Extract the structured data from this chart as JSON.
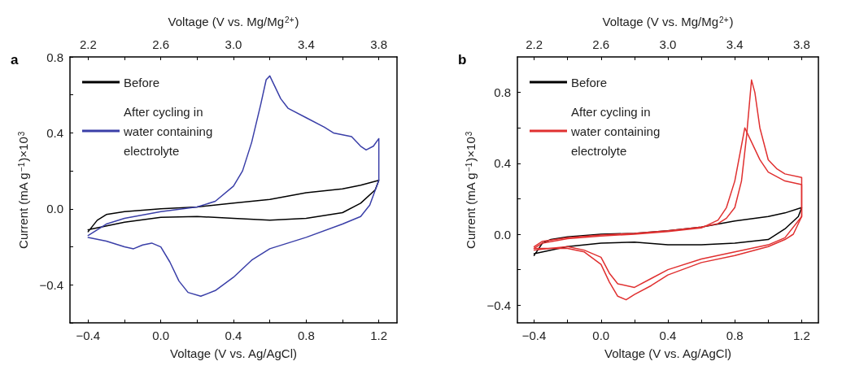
{
  "chart_data": [
    {
      "type": "line",
      "title": "a",
      "xlabel": "Voltage (V vs. Ag/AgCl)",
      "x2label": "Voltage (V vs. Mg/Mg$^{2+}$)",
      "ylabel": "Current (mA g$^{−1}$)×10$^{3}$",
      "legend": "top left",
      "marker": "none",
      "xlim": [
        -0.5,
        1.3
      ],
      "xticks": [
        {
          "value": -0.4,
          "label": "−0.4"
        },
        {
          "value": -0.2,
          "label": null
        },
        {
          "value": 0,
          "label": "0.0"
        },
        {
          "value": 0.2,
          "label": null
        },
        {
          "value": 0.4,
          "label": "0.4"
        },
        {
          "value": 0.6,
          "label": null
        },
        {
          "value": 0.8,
          "label": "0.8"
        },
        {
          "value": 1.0,
          "label": null
        },
        {
          "value": 1.2,
          "label": "1.2"
        }
      ],
      "x2lim": [
        2.1,
        3.9
      ],
      "x2ticks": [
        {
          "value": 2.2,
          "label": "2.2"
        },
        {
          "value": 2.4,
          "label": null
        },
        {
          "value": 2.6,
          "label": "2.6"
        },
        {
          "value": 2.8,
          "label": null
        },
        {
          "value": 3.0,
          "label": "3.0"
        },
        {
          "value": 3.2,
          "label": null
        },
        {
          "value": 3.4,
          "label": "3.4"
        },
        {
          "value": 3.6,
          "label": null
        },
        {
          "value": 3.8,
          "label": "3.8"
        }
      ],
      "ylim": [
        -0.6,
        0.8
      ],
      "yticks": [
        {
          "value": -0.6,
          "label": null
        },
        {
          "value": -0.4,
          "label": "−0.4"
        },
        {
          "value": -0.2,
          "label": null
        },
        {
          "value": 0,
          "label": "0.0"
        },
        {
          "value": 0.2,
          "label": null
        },
        {
          "value": 0.4,
          "label": "0.4"
        },
        {
          "value": 0.6,
          "label": null
        },
        {
          "value": 0.8,
          "label": "0.8"
        }
      ],
      "series": [
        {
          "name": "Before",
          "color": "#000000",
          "x": [
            -0.4,
            -0.35,
            -0.3,
            -0.2,
            0,
            0.2,
            0.4,
            0.6,
            0.8,
            1.0,
            1.1,
            1.2,
            1.18,
            1.1,
            1.0,
            0.8,
            0.6,
            0.4,
            0.2,
            0.0,
            -0.2,
            -0.4
          ],
          "values": [
            -0.12,
            -0.06,
            -0.03,
            -0.015,
            0,
            0.01,
            0.03,
            0.05,
            0.085,
            0.105,
            0.125,
            0.15,
            0.1,
            0.03,
            -0.02,
            -0.05,
            -0.06,
            -0.05,
            -0.04,
            -0.045,
            -0.07,
            -0.11
          ]
        },
        {
          "name": "After cycling in water containing electrolyte",
          "color": "#3a3fa8",
          "x": [
            -0.4,
            -0.3,
            -0.2,
            0,
            0.2,
            0.3,
            0.4,
            0.45,
            0.5,
            0.55,
            0.58,
            0.6,
            0.63,
            0.66,
            0.7,
            0.8,
            0.9,
            0.95,
            1.05,
            1.1,
            1.13,
            1.17,
            1.2,
            1.2,
            1.15,
            1.1,
            1.0,
            0.8,
            0.6,
            0.5,
            0.4,
            0.3,
            0.22,
            0.15,
            0.1,
            0.05,
            0,
            -0.05,
            -0.1,
            -0.15,
            -0.2,
            -0.3,
            -0.4
          ],
          "values": [
            -0.14,
            -0.08,
            -0.05,
            -0.015,
            0.01,
            0.04,
            0.12,
            0.2,
            0.35,
            0.55,
            0.68,
            0.7,
            0.64,
            0.58,
            0.53,
            0.48,
            0.43,
            0.4,
            0.38,
            0.33,
            0.31,
            0.33,
            0.37,
            0.15,
            0.02,
            -0.04,
            -0.08,
            -0.15,
            -0.21,
            -0.27,
            -0.36,
            -0.43,
            -0.46,
            -0.44,
            -0.38,
            -0.28,
            -0.2,
            -0.18,
            -0.19,
            -0.21,
            -0.2,
            -0.17,
            -0.15
          ]
        }
      ]
    },
    {
      "type": "line",
      "title": "b",
      "xlabel": "Voltage (V vs. Ag/AgCl)",
      "x2label": "Voltage (V vs. Mg/Mg$^{2+}$)",
      "ylabel": "Current (mA g$^{−1}$)×10$^{3}$",
      "legend": "top left",
      "marker": "none",
      "xlim": [
        -0.5,
        1.3
      ],
      "xticks": [
        {
          "value": -0.4,
          "label": "−0.4"
        },
        {
          "value": -0.2,
          "label": null
        },
        {
          "value": 0,
          "label": "0.0"
        },
        {
          "value": 0.2,
          "label": null
        },
        {
          "value": 0.4,
          "label": "0.4"
        },
        {
          "value": 0.6,
          "label": null
        },
        {
          "value": 0.8,
          "label": "0.8"
        },
        {
          "value": 1.0,
          "label": null
        },
        {
          "value": 1.2,
          "label": "1.2"
        }
      ],
      "x2lim": [
        2.1,
        3.9
      ],
      "x2ticks": [
        {
          "value": 2.2,
          "label": "2.2"
        },
        {
          "value": 2.4,
          "label": null
        },
        {
          "value": 2.6,
          "label": "2.6"
        },
        {
          "value": 2.8,
          "label": null
        },
        {
          "value": 3.0,
          "label": "3.0"
        },
        {
          "value": 3.2,
          "label": null
        },
        {
          "value": 3.4,
          "label": "3.4"
        },
        {
          "value": 3.6,
          "label": null
        },
        {
          "value": 3.8,
          "label": "3.8"
        }
      ],
      "ylim": [
        -0.5,
        1.0
      ],
      "yticks": [
        {
          "value": -0.4,
          "label": "−0.4"
        },
        {
          "value": -0.2,
          "label": null
        },
        {
          "value": 0,
          "label": "0.0"
        },
        {
          "value": 0.2,
          "label": null
        },
        {
          "value": 0.4,
          "label": "0.4"
        },
        {
          "value": 0.6,
          "label": null
        },
        {
          "value": 0.8,
          "label": "0.8"
        }
      ],
      "series": [
        {
          "name": "Before",
          "color": "#000000",
          "x": [
            -0.4,
            -0.35,
            -0.3,
            -0.2,
            0,
            0.2,
            0.4,
            0.6,
            0.8,
            1.0,
            1.1,
            1.2,
            1.18,
            1.1,
            1.0,
            0.8,
            0.6,
            0.4,
            0.2,
            0.0,
            -0.2,
            -0.4
          ],
          "values": [
            -0.12,
            -0.05,
            -0.03,
            -0.015,
            0,
            0.005,
            0.02,
            0.04,
            0.075,
            0.1,
            0.12,
            0.15,
            0.1,
            0.03,
            -0.03,
            -0.05,
            -0.06,
            -0.06,
            -0.045,
            -0.05,
            -0.07,
            -0.11
          ]
        },
        {
          "name": "After cycling in water containing electrolyte",
          "color": "#e03030",
          "x": [
            -0.4,
            -0.35,
            -0.2,
            0,
            0.2,
            0.4,
            0.6,
            0.7,
            0.75,
            0.8,
            0.84,
            0.87,
            0.9,
            0.92,
            0.95,
            1.0,
            1.05,
            1.1,
            1.2,
            1.2,
            1.15,
            1.1,
            1.0,
            0.8,
            0.6,
            0.4,
            0.3,
            0.2,
            0.15,
            0.1,
            0.05,
            0,
            -0.1,
            -0.2,
            -0.4
          ],
          "values": [
            -0.07,
            -0.04,
            -0.02,
            -0.005,
            0.005,
            0.02,
            0.04,
            0.06,
            0.09,
            0.15,
            0.3,
            0.55,
            0.87,
            0.8,
            0.6,
            0.42,
            0.37,
            0.34,
            0.32,
            0.1,
            0.0,
            -0.03,
            -0.07,
            -0.12,
            -0.16,
            -0.23,
            -0.29,
            -0.34,
            -0.37,
            -0.35,
            -0.27,
            -0.17,
            -0.1,
            -0.08,
            -0.08
          ]
        },
        {
          "color": "#e03030",
          "x": [
            -0.4,
            -0.35,
            -0.2,
            0,
            0.2,
            0.4,
            0.6,
            0.7,
            0.75,
            0.8,
            0.84,
            0.86,
            0.9,
            0.95,
            1.0,
            1.1,
            1.2,
            1.2,
            1.1,
            1.0,
            0.8,
            0.6,
            0.4,
            0.3,
            0.2,
            0.1,
            0.05,
            0,
            -0.1,
            -0.2,
            -0.4
          ],
          "values": [
            -0.08,
            -0.05,
            -0.025,
            -0.01,
            0.0,
            0.015,
            0.035,
            0.08,
            0.15,
            0.3,
            0.5,
            0.6,
            0.52,
            0.42,
            0.35,
            0.3,
            0.28,
            0.1,
            -0.02,
            -0.06,
            -0.1,
            -0.14,
            -0.2,
            -0.25,
            -0.3,
            -0.28,
            -0.22,
            -0.13,
            -0.09,
            -0.07,
            -0.09
          ]
        }
      ]
    }
  ]
}
